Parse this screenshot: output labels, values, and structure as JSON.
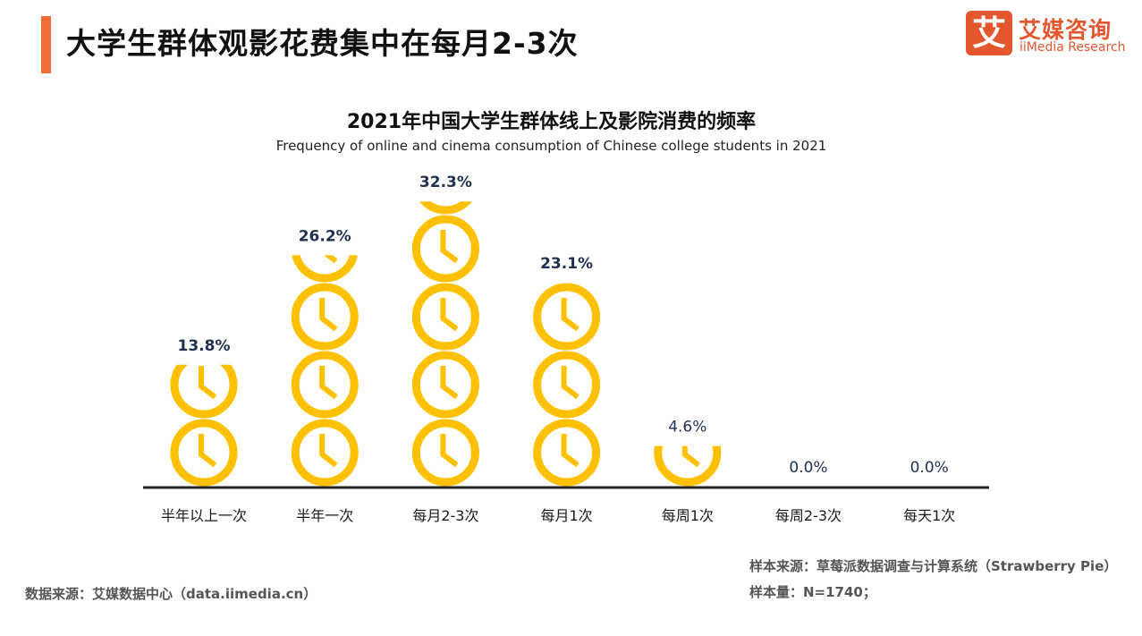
{
  "header": {
    "title": "大学生群体观影花费集中在每月2-3次",
    "accent_color": "#F26B3A"
  },
  "logo": {
    "mark": "艾",
    "cn_name": "艾媒咨询",
    "en_name": "iiMedia Research",
    "brand_color": "#E4572E"
  },
  "chart_data": {
    "type": "bar",
    "title": "2021年中国大学生群体线上及影院消费的频率",
    "subtitle": "Frequency of online and cinema consumption of Chinese college students in 2021",
    "categories": [
      "半年以上一次",
      "半年一次",
      "每月2-3次",
      "每月1次",
      "每周1次",
      "每周2-3次",
      "每天1次"
    ],
    "values": [
      13.8,
      26.2,
      32.3,
      23.1,
      4.6,
      0.0,
      0.0
    ],
    "value_labels": [
      "13.8%",
      "26.2%",
      "32.3%",
      "23.1%",
      "4.6%",
      "0.0%",
      "0.0%"
    ],
    "unit": "%",
    "ylim": [
      0,
      35
    ],
    "icon": "clock-icon",
    "icon_value": 7.7,
    "icon_color": "#FFC000",
    "axis_color": "#222222",
    "label_color": "#1F3050"
  },
  "footer": {
    "data_source": "数据来源：艾媒数据中心（data.iimedia.cn）",
    "sample_source": "样本来源：草莓派数据调查与计算系统（Strawberry Pie）",
    "sample_size": "样本量：N=1740；"
  }
}
